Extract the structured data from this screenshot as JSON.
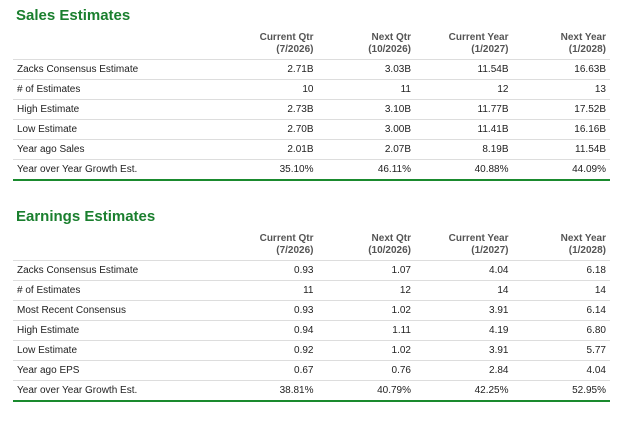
{
  "sales": {
    "title": "Sales Estimates",
    "columns": [
      {
        "line1": "Current Qtr",
        "line2": "(7/2026)"
      },
      {
        "line1": "Next Qtr",
        "line2": "(10/2026)"
      },
      {
        "line1": "Current Year",
        "line2": "(1/2027)"
      },
      {
        "line1": "Next Year",
        "line2": "(1/2028)"
      }
    ],
    "rows": [
      {
        "label": "Zacks Consensus Estimate",
        "values": [
          "2.71B",
          "3.03B",
          "11.54B",
          "16.63B"
        ]
      },
      {
        "label": "# of Estimates",
        "values": [
          "10",
          "11",
          "12",
          "13"
        ]
      },
      {
        "label": "High Estimate",
        "values": [
          "2.73B",
          "3.10B",
          "11.77B",
          "17.52B"
        ]
      },
      {
        "label": "Low Estimate",
        "values": [
          "2.70B",
          "3.00B",
          "11.41B",
          "16.16B"
        ]
      },
      {
        "label": "Year ago Sales",
        "values": [
          "2.01B",
          "2.07B",
          "8.19B",
          "11.54B"
        ]
      },
      {
        "label": "Year over Year Growth Est.",
        "values": [
          "35.10%",
          "46.11%",
          "40.88%",
          "44.09%"
        ]
      }
    ]
  },
  "earnings": {
    "title": "Earnings Estimates",
    "columns": [
      {
        "line1": "Current Qtr",
        "line2": "(7/2026)"
      },
      {
        "line1": "Next Qtr",
        "line2": "(10/2026)"
      },
      {
        "line1": "Current Year",
        "line2": "(1/2027)"
      },
      {
        "line1": "Next Year",
        "line2": "(1/2028)"
      }
    ],
    "rows": [
      {
        "label": "Zacks Consensus Estimate",
        "values": [
          "0.93",
          "1.07",
          "4.04",
          "6.18"
        ]
      },
      {
        "label": "# of Estimates",
        "values": [
          "11",
          "12",
          "14",
          "14"
        ]
      },
      {
        "label": "Most Recent Consensus",
        "values": [
          "0.93",
          "1.02",
          "3.91",
          "6.14"
        ]
      },
      {
        "label": "High Estimate",
        "values": [
          "0.94",
          "1.11",
          "4.19",
          "6.80"
        ]
      },
      {
        "label": "Low Estimate",
        "values": [
          "0.92",
          "1.02",
          "3.91",
          "5.77"
        ]
      },
      {
        "label": "Year ago EPS",
        "values": [
          "0.67",
          "0.76",
          "2.84",
          "4.04"
        ]
      },
      {
        "label": "Year over Year Growth Est.",
        "values": [
          "38.81%",
          "40.79%",
          "42.25%",
          "52.95%"
        ]
      }
    ]
  },
  "colors": {
    "accent_green": "#1a7f2e",
    "row_divider": "#dddddd"
  }
}
